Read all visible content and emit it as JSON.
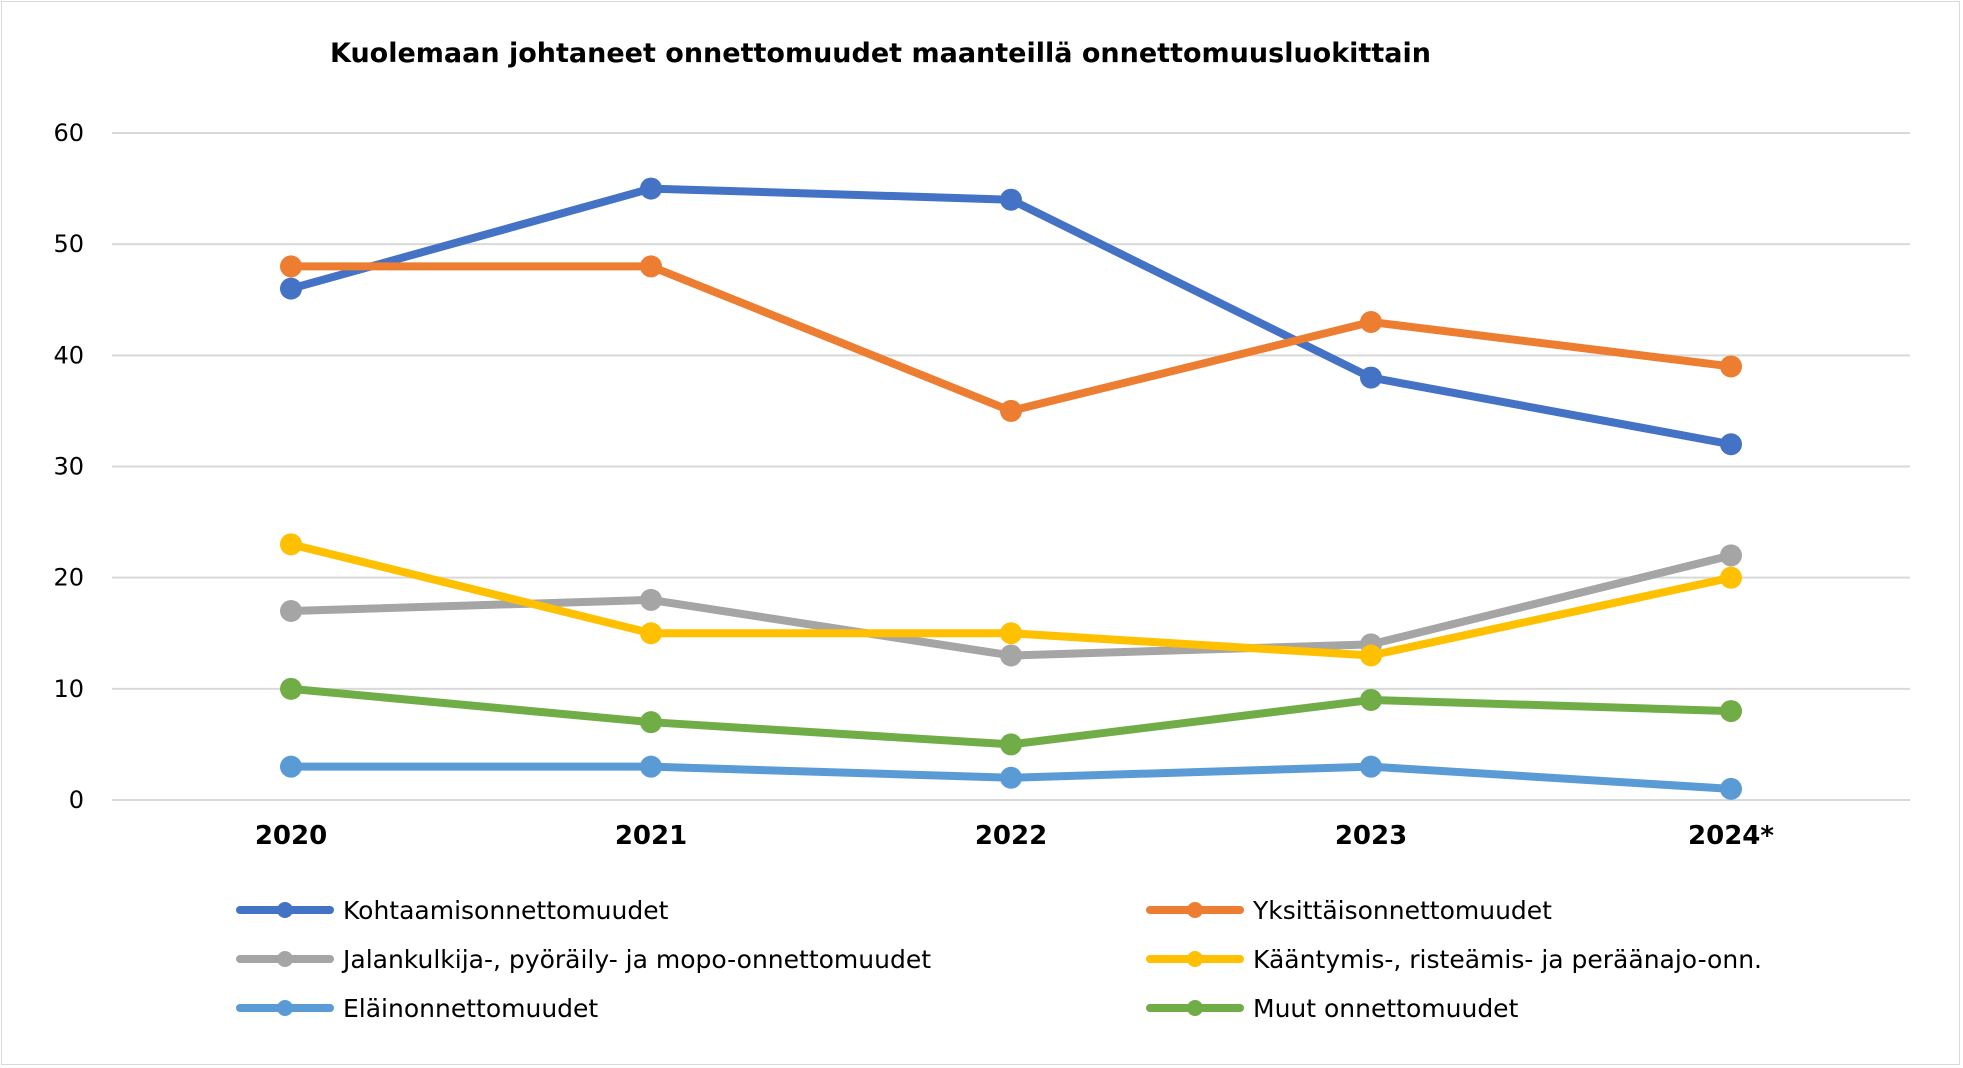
{
  "chart_data": {
    "type": "line",
    "title": "Kuolemaan johtaneet onnettomuudet maanteillä onnettomuusluokittain",
    "xlabel": "",
    "ylabel": "",
    "ylim": [
      0,
      60
    ],
    "yticks": [
      0,
      10,
      20,
      30,
      40,
      50,
      60
    ],
    "grid": true,
    "legend_position": "bottom",
    "categories": [
      "2020",
      "2021",
      "2022",
      "2023",
      "2024*"
    ],
    "series": [
      {
        "name": "Kohtaamisonnettomuudet",
        "color": "#4472C4",
        "values": [
          46,
          55,
          54,
          38,
          32
        ]
      },
      {
        "name": "Yksittäisonnettomuudet",
        "color": "#ED7D31",
        "values": [
          48,
          48,
          35,
          43,
          39
        ]
      },
      {
        "name": "Jalankulkija-, pyöräily- ja mopo-onnettomuudet",
        "color": "#A5A5A5",
        "values": [
          17,
          18,
          13,
          14,
          22
        ]
      },
      {
        "name": "Kääntymis-, risteämis- ja peräänajo-onn.",
        "color": "#FFC000",
        "values": [
          23,
          15,
          15,
          13,
          20
        ]
      },
      {
        "name": "Eläinonnettomuudet",
        "color": "#5B9BD5",
        "values": [
          3,
          3,
          2,
          3,
          1
        ]
      },
      {
        "name": "Muut onnettomuudet",
        "color": "#70AD47",
        "values": [
          10,
          7,
          5,
          9,
          8
        ]
      }
    ]
  }
}
